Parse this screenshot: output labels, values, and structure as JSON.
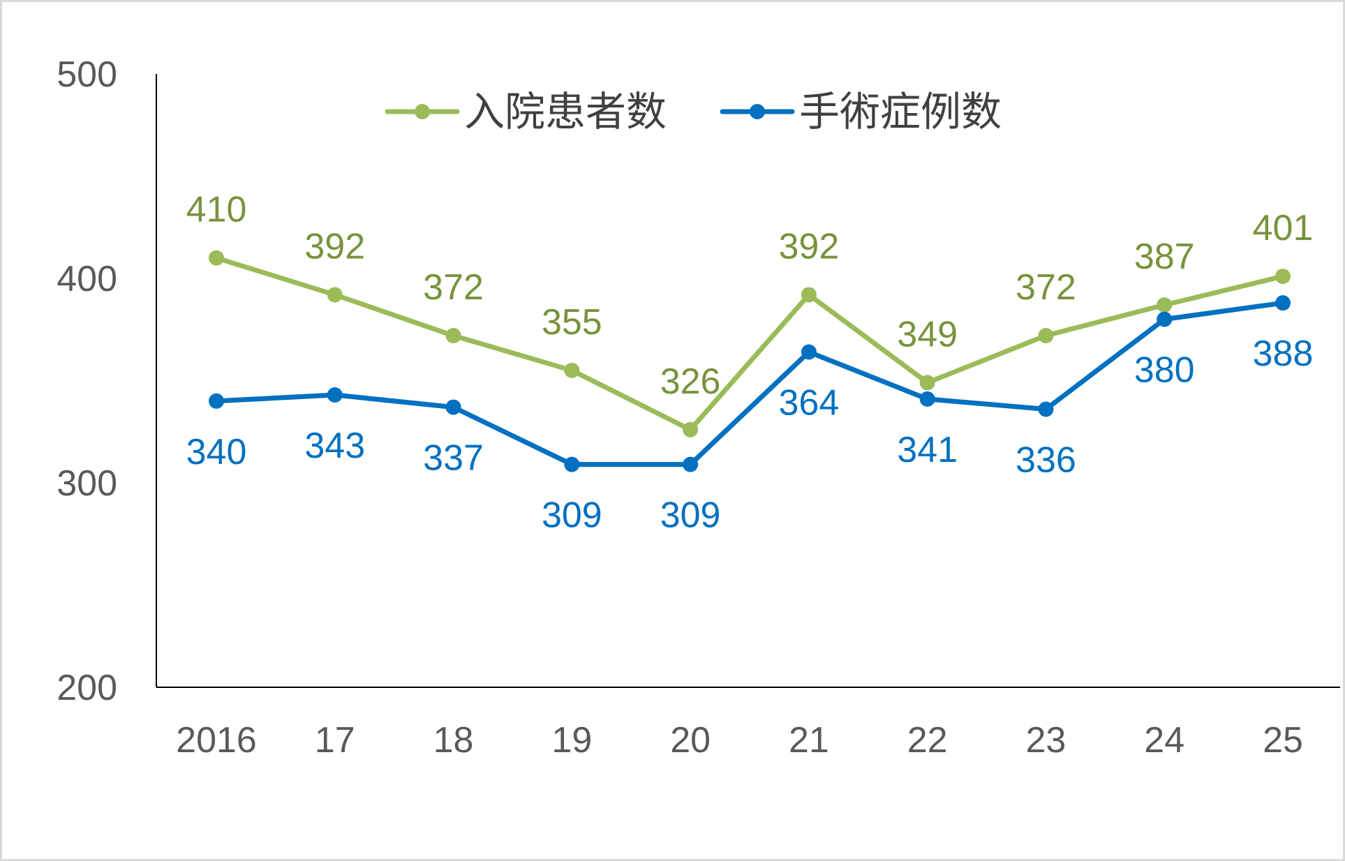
{
  "chart_data": {
    "type": "line",
    "title": "",
    "xlabel": "",
    "ylabel": "",
    "categories": [
      "2016",
      "17",
      "18",
      "19",
      "20",
      "21",
      "22",
      "23",
      "24",
      "25"
    ],
    "ylim": [
      200,
      500
    ],
    "yticks": [
      200,
      300,
      400,
      500
    ],
    "grid": false,
    "legend_position": "top",
    "series": [
      {
        "name": "入院患者数",
        "color": "#9bbb59",
        "label_color": "#77933c",
        "label_position": "above",
        "values": [
          410,
          392,
          372,
          355,
          326,
          392,
          349,
          372,
          387,
          401
        ]
      },
      {
        "name": "手術症例数",
        "color": "#0070c0",
        "label_color": "#0070c0",
        "label_position": "below",
        "values": [
          340,
          343,
          337,
          309,
          309,
          364,
          341,
          336,
          380,
          388
        ]
      }
    ]
  }
}
